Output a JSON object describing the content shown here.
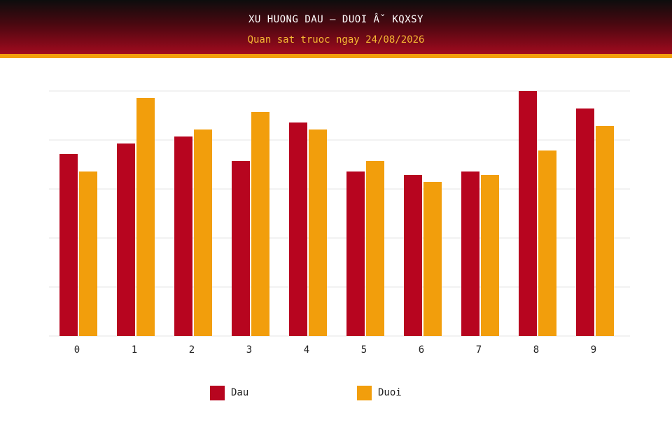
{
  "header": {
    "title": "XU HUONG DAU – DUOI Âˇ KQXSY",
    "subtitle": "Quan sat truoc ngay 24/08/2026"
  },
  "colors": {
    "dau": "#b7051f",
    "duoi": "#f29e0c",
    "grid": "#e6e6e6"
  },
  "chart_data": {
    "type": "bar",
    "categories": [
      "0",
      "1",
      "2",
      "3",
      "4",
      "5",
      "6",
      "7",
      "8",
      "9"
    ],
    "series": [
      {
        "name": "Dau",
        "values": [
          52,
          55,
          57,
          50,
          61,
          47,
          46,
          47,
          70,
          65
        ]
      },
      {
        "name": "Duoi",
        "values": [
          47,
          68,
          59,
          64,
          59,
          50,
          44,
          46,
          53,
          60
        ]
      }
    ],
    "ylim": [
      0,
      70
    ],
    "grid": true,
    "legend_position": "bottom"
  }
}
